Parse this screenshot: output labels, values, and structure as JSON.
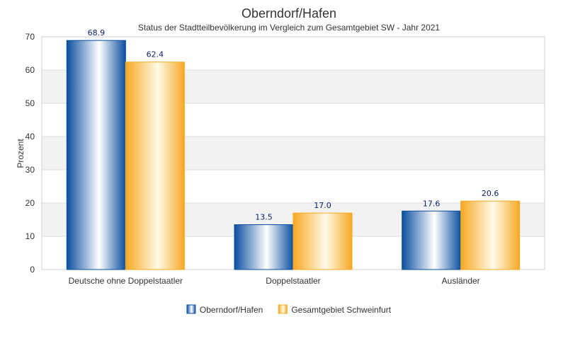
{
  "chart_data": {
    "type": "bar",
    "title": "Oberndorf/Hafen",
    "subtitle": "Status der Stadtteilbevölkerung im Vergleich zum Gesamtgebiet SW - Jahr 2021",
    "xlabel": "",
    "ylabel": "Prozent",
    "ylim": [
      0,
      70
    ],
    "yticks": [
      0,
      10,
      20,
      30,
      40,
      50,
      60,
      70
    ],
    "categories": [
      "Deutsche ohne Doppelstaatler",
      "Doppelstaatler",
      "Ausländer"
    ],
    "series": [
      {
        "name": "Oberndorf/Hafen",
        "values": [
          68.9,
          13.5,
          17.6
        ],
        "labels": [
          "68.9",
          "13.5",
          "17.6"
        ],
        "color": "#0b4fa0"
      },
      {
        "name": "Gesamtgebiet Schweinfurt",
        "values": [
          62.4,
          17.0,
          20.6
        ],
        "labels": [
          "62.4",
          "17.0",
          "20.6"
        ],
        "color": "#f7a823"
      }
    ],
    "grid": true,
    "legend": "bottom-center"
  }
}
